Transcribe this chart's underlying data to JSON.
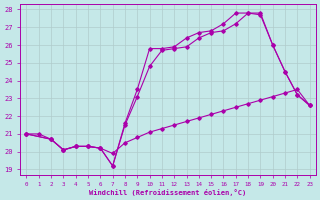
{
  "xlabel": "Windchill (Refroidissement éolien,°C)",
  "xlim": [
    -0.5,
    23.5
  ],
  "ylim": [
    18.7,
    28.3
  ],
  "yticks": [
    19,
    20,
    21,
    22,
    23,
    24,
    25,
    26,
    27,
    28
  ],
  "xticks": [
    0,
    1,
    2,
    3,
    4,
    5,
    6,
    7,
    8,
    9,
    10,
    11,
    12,
    13,
    14,
    15,
    16,
    17,
    18,
    19,
    20,
    21,
    22,
    23
  ],
  "background_color": "#c5e8e8",
  "grid_color": "#b0cccc",
  "line_color": "#aa00aa",
  "line1_x": [
    0,
    1,
    2,
    3,
    4,
    5,
    6,
    7,
    8,
    9,
    10,
    11,
    12,
    13,
    14,
    15,
    16,
    17,
    18,
    19,
    20,
    21,
    22,
    23
  ],
  "line1_y": [
    21.0,
    21.0,
    20.7,
    20.1,
    20.3,
    20.3,
    20.2,
    19.9,
    20.5,
    20.8,
    21.1,
    21.3,
    21.5,
    21.7,
    21.9,
    22.1,
    22.3,
    22.5,
    22.7,
    22.9,
    23.1,
    23.3,
    23.5,
    22.6
  ],
  "line2_x": [
    0,
    2,
    3,
    4,
    5,
    6,
    7,
    8,
    9,
    10,
    11,
    12,
    13,
    14,
    15,
    16,
    17,
    18,
    19,
    20,
    21,
    22,
    23
  ],
  "line2_y": [
    21.0,
    20.7,
    20.1,
    20.3,
    20.3,
    20.2,
    19.2,
    21.5,
    23.1,
    24.8,
    25.7,
    25.8,
    25.9,
    26.4,
    26.7,
    26.8,
    27.2,
    27.8,
    27.8,
    26.0,
    24.5,
    23.2,
    22.6
  ],
  "line3_x": [
    0,
    2,
    3,
    4,
    5,
    6,
    7,
    8,
    9,
    10,
    11,
    12,
    13,
    14,
    15,
    16,
    17,
    18,
    19,
    20,
    21,
    22,
    23
  ],
  "line3_y": [
    21.0,
    20.7,
    20.1,
    20.3,
    20.3,
    20.2,
    19.2,
    21.6,
    23.5,
    25.8,
    25.8,
    25.9,
    26.4,
    26.7,
    26.8,
    27.2,
    27.8,
    27.8,
    27.7,
    26.0,
    24.5,
    23.2,
    22.6
  ]
}
